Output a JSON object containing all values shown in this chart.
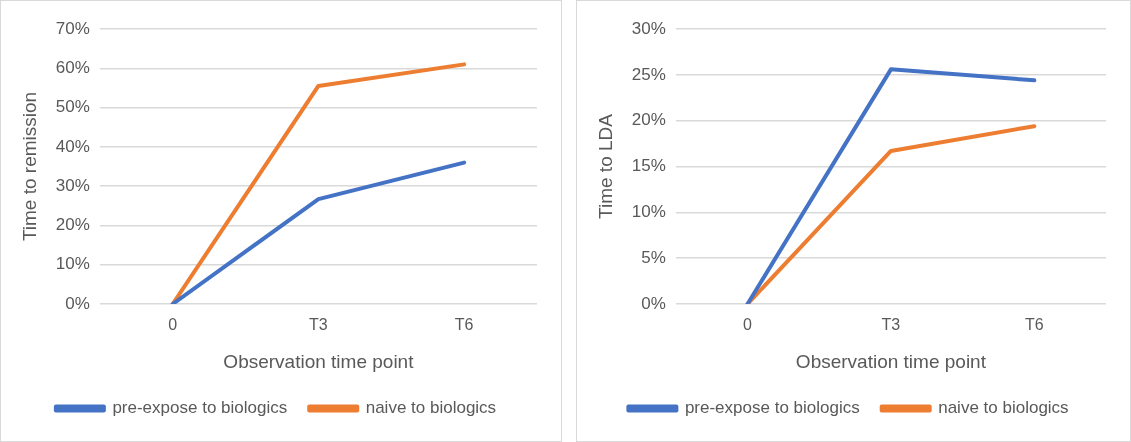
{
  "chart_data": [
    {
      "type": "line",
      "xlabel": "Observation time point",
      "ylabel": "Time to remission",
      "categories": [
        "0",
        "T3",
        "T6"
      ],
      "series": [
        {
          "name": "pre-expose to biologics",
          "color": "#4472c4",
          "values": [
            0,
            26.7,
            36
          ]
        },
        {
          "name": "naive to biologics",
          "color": "#ed7d31",
          "values": [
            0,
            55.5,
            61
          ]
        }
      ],
      "ylim": [
        0,
        70
      ],
      "yticks": [
        {
          "value": 0,
          "label": "0%"
        },
        {
          "value": 10,
          "label": "10%"
        },
        {
          "value": 20,
          "label": "20%"
        },
        {
          "value": 30,
          "label": "30%"
        },
        {
          "value": 40,
          "label": "40%"
        },
        {
          "value": 50,
          "label": "50%"
        },
        {
          "value": 60,
          "label": "60%"
        },
        {
          "value": 70,
          "label": "70%"
        }
      ],
      "grid": "y",
      "legend": "bottom",
      "marker": "none",
      "line_style": "solid"
    },
    {
      "type": "line",
      "xlabel": "Observation time point",
      "ylabel": "Time to LDA",
      "categories": [
        "0",
        "T3",
        "T6"
      ],
      "series": [
        {
          "name": "pre-expose to biologics",
          "color": "#4472c4",
          "values": [
            0,
            25.6,
            24.4
          ]
        },
        {
          "name": "naive to biologics",
          "color": "#ed7d31",
          "values": [
            0,
            16.7,
            19.4
          ]
        }
      ],
      "ylim": [
        0,
        30
      ],
      "yticks": [
        {
          "value": 0,
          "label": "0%"
        },
        {
          "value": 5,
          "label": "5%"
        },
        {
          "value": 10,
          "label": "10%"
        },
        {
          "value": 15,
          "label": "15%"
        },
        {
          "value": 20,
          "label": "20%"
        },
        {
          "value": 25,
          "label": "25%"
        },
        {
          "value": 30,
          "label": "30%"
        }
      ],
      "grid": "y",
      "legend": "bottom",
      "marker": "none",
      "line_style": "solid"
    }
  ]
}
